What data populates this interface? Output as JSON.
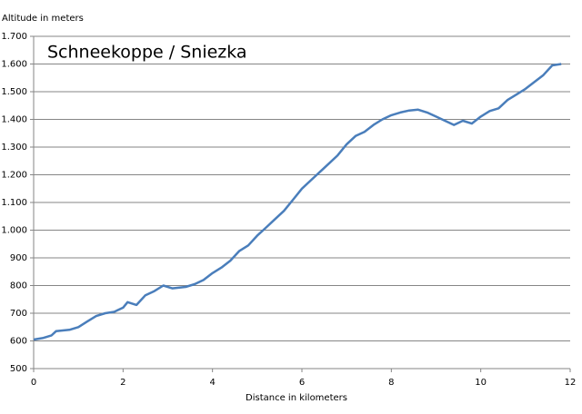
{
  "chart_data": {
    "type": "line",
    "title": "Schneekoppe / Sniezka",
    "y_label": "Altitude in meters",
    "x_label": "Distance in kilometers",
    "x": [
      0,
      0.2,
      0.4,
      0.5,
      0.8,
      1.0,
      1.2,
      1.4,
      1.6,
      1.8,
      2.0,
      2.1,
      2.3,
      2.5,
      2.7,
      2.9,
      3.1,
      3.4,
      3.6,
      3.8,
      4.0,
      4.2,
      4.4,
      4.6,
      4.8,
      5.0,
      5.2,
      5.4,
      5.6,
      5.8,
      6.0,
      6.2,
      6.4,
      6.6,
      6.8,
      7.0,
      7.2,
      7.4,
      7.6,
      7.8,
      8.0,
      8.2,
      8.4,
      8.6,
      8.8,
      9.0,
      9.2,
      9.4,
      9.6,
      9.8,
      10.0,
      10.2,
      10.4,
      10.6,
      10.8,
      11.0,
      11.2,
      11.4,
      11.6,
      11.8
    ],
    "series": [
      {
        "color": "#4a7ebb",
        "values": [
          605,
          610,
          620,
          635,
          640,
          650,
          670,
          690,
          700,
          705,
          720,
          740,
          730,
          765,
          780,
          800,
          790,
          795,
          805,
          820,
          845,
          865,
          890,
          925,
          945,
          980,
          1010,
          1040,
          1070,
          1110,
          1150,
          1180,
          1210,
          1240,
          1270,
          1310,
          1340,
          1355,
          1380,
          1400,
          1415,
          1425,
          1432,
          1435,
          1425,
          1410,
          1395,
          1380,
          1395,
          1385,
          1410,
          1430,
          1440,
          1470,
          1490,
          1510,
          1535,
          1560,
          1595,
          1600
        ]
      }
    ],
    "xlim": [
      0,
      12
    ],
    "xticks": [
      0,
      2,
      4,
      6,
      8,
      10,
      12
    ],
    "ylim": [
      500,
      1700
    ],
    "yticks": [
      500,
      600,
      700,
      800,
      900,
      {
        "value": 1000,
        "label": "1.000"
      },
      {
        "value": 1100,
        "label": "1.100"
      },
      {
        "value": 1200,
        "label": "1.200"
      },
      {
        "value": 1300,
        "label": "1.300"
      },
      {
        "value": 1400,
        "label": "1.400"
      },
      {
        "value": 1500,
        "label": "1.500"
      },
      {
        "value": 1600,
        "label": "1.600"
      },
      {
        "value": 1700,
        "label": "1.700"
      }
    ],
    "grid": true
  }
}
